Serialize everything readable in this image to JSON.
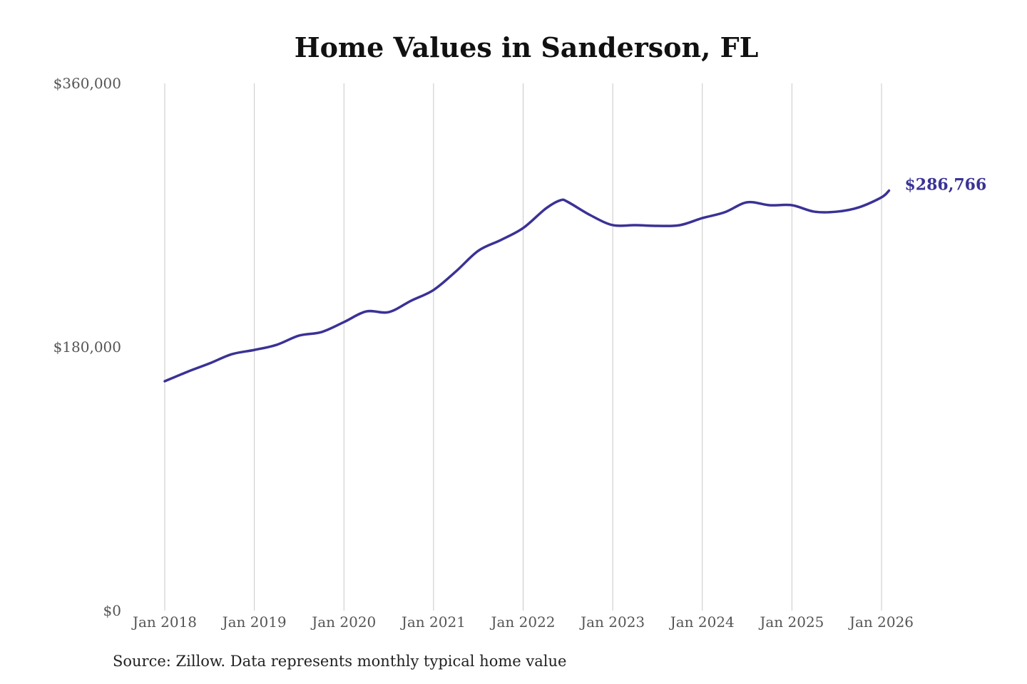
{
  "chart_data": {
    "type": "line",
    "title": "Home Values in Sanderson, FL",
    "source": "Source: Zillow. Data represents monthly typical home value",
    "xlabel": "",
    "ylabel": "",
    "ylim": [
      0,
      360000
    ],
    "xlim": [
      "2018-01",
      "2026-02"
    ],
    "y_ticks": [
      {
        "value": 0,
        "label": "$0"
      },
      {
        "value": 180000,
        "label": "$180,000"
      },
      {
        "value": 360000,
        "label": "$360,000"
      }
    ],
    "x_ticks": [
      {
        "date": "2018-01",
        "label": "Jan 2018"
      },
      {
        "date": "2019-01",
        "label": "Jan 2019"
      },
      {
        "date": "2020-01",
        "label": "Jan 2020"
      },
      {
        "date": "2021-01",
        "label": "Jan 2021"
      },
      {
        "date": "2022-01",
        "label": "Jan 2022"
      },
      {
        "date": "2023-01",
        "label": "Jan 2023"
      },
      {
        "date": "2024-01",
        "label": "Jan 2024"
      },
      {
        "date": "2025-01",
        "label": "Jan 2025"
      },
      {
        "date": "2026-01",
        "label": "Jan 2026"
      }
    ],
    "grid": "vertical",
    "line_color": "#3a3296",
    "end_label": "$286,766",
    "series": [
      {
        "x": [
          "2018-01",
          "2018-04",
          "2018-07",
          "2018-10",
          "2019-01",
          "2019-04",
          "2019-07",
          "2019-10",
          "2020-01",
          "2020-04",
          "2020-07",
          "2020-10",
          "2021-01",
          "2021-04",
          "2021-07",
          "2021-10",
          "2022-01",
          "2022-04",
          "2022-06",
          "2022-07",
          "2022-10",
          "2023-01",
          "2023-04",
          "2023-07",
          "2023-10",
          "2024-01",
          "2024-04",
          "2024-07",
          "2024-10",
          "2025-01",
          "2025-04",
          "2025-07",
          "2025-10",
          "2026-01",
          "2026-02"
        ],
        "y": [
          156600,
          163000,
          168800,
          175100,
          178000,
          181500,
          187800,
          190200,
          197000,
          204300,
          203800,
          211600,
          218900,
          231600,
          245700,
          253000,
          261200,
          274400,
          280200,
          279000,
          270000,
          263200,
          263200,
          262700,
          263200,
          268000,
          272000,
          278800,
          276800,
          276800,
          272400,
          272400,
          275400,
          282200,
          286766
        ]
      }
    ]
  }
}
